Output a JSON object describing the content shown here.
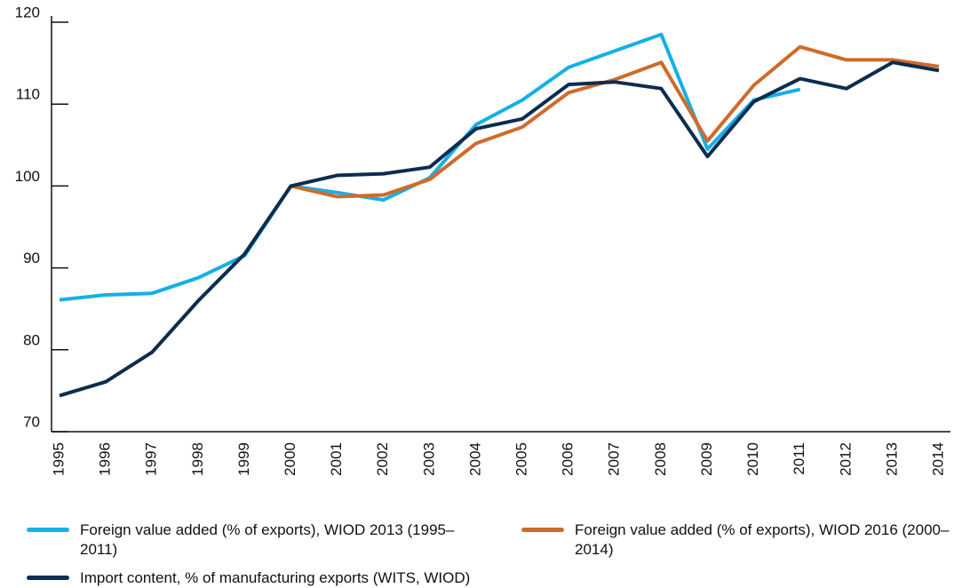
{
  "chart_data": {
    "type": "line",
    "categories": [
      "1995",
      "1996",
      "1997",
      "1998",
      "1999",
      "2000",
      "2001",
      "2002",
      "2003",
      "2004",
      "2005",
      "2006",
      "2007",
      "2008",
      "2009",
      "2010",
      "2011",
      "2012",
      "2013",
      "2014"
    ],
    "series": [
      {
        "name": "Foreign value added (% of exports), WIOD 2013 (1995–2011)",
        "color": "#14b0e8",
        "values": [
          86.1,
          86.7,
          86.9,
          88.8,
          91.5,
          100,
          99.2,
          98.3,
          101,
          107.5,
          110.5,
          114.5,
          116.5,
          118.5,
          104.5,
          110.5,
          111.8,
          null,
          null,
          null
        ]
      },
      {
        "name": "Foreign value added (% of exports), WIOD 2016 (2000–2014)",
        "color": "#cf6b2a",
        "values": [
          null,
          null,
          null,
          null,
          null,
          100,
          98.7,
          98.9,
          100.8,
          105.2,
          107.2,
          111.4,
          113,
          115.1,
          105.5,
          112.3,
          117,
          115.4,
          115.4,
          114.6
        ]
      },
      {
        "name": "Import content, % of manufacturing exports (WITS, WIOD)",
        "color": "#0b2d4f",
        "values": [
          74.4,
          76.1,
          79.7,
          86,
          91.7,
          100,
          101.3,
          101.5,
          102.3,
          107,
          108.2,
          112.4,
          112.7,
          111.9,
          103.6,
          110.3,
          113.1,
          111.9,
          115.1,
          114.1
        ]
      }
    ],
    "ylim": [
      70,
      120
    ],
    "yticks": [
      70,
      80,
      90,
      100,
      110,
      120
    ]
  }
}
